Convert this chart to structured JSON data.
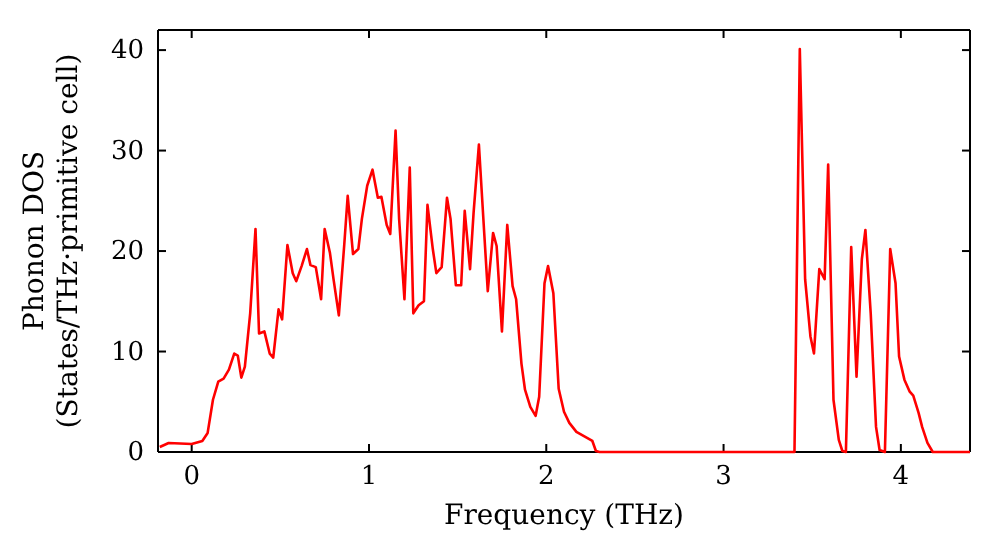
{
  "chart_data": {
    "type": "line",
    "xlabel": "Frequency (THz)",
    "ylabel": "Phonon DOS\n(States/THz·primitive cell)",
    "xlim": [
      -0.19,
      4.39
    ],
    "ylim": [
      0,
      42
    ],
    "xticks": [
      0,
      1,
      2,
      3,
      4
    ],
    "yticks": [
      0,
      10,
      20,
      30,
      40
    ],
    "grid": false,
    "marker": "none",
    "line_style": "solid",
    "series": [
      {
        "color": "#ff0000",
        "x": [
          -0.18,
          -0.13,
          0.0,
          0.06,
          0.09,
          0.12,
          0.15,
          0.18,
          0.21,
          0.24,
          0.26,
          0.28,
          0.3,
          0.33,
          0.36,
          0.38,
          0.41,
          0.44,
          0.46,
          0.49,
          0.51,
          0.54,
          0.57,
          0.59,
          0.62,
          0.65,
          0.67,
          0.7,
          0.73,
          0.75,
          0.78,
          0.8,
          0.83,
          0.86,
          0.88,
          0.91,
          0.94,
          0.96,
          0.99,
          1.02,
          1.05,
          1.07,
          1.1,
          1.12,
          1.15,
          1.17,
          1.2,
          1.23,
          1.25,
          1.28,
          1.31,
          1.33,
          1.36,
          1.38,
          1.41,
          1.44,
          1.46,
          1.49,
          1.52,
          1.54,
          1.57,
          1.59,
          1.62,
          1.65,
          1.67,
          1.7,
          1.72,
          1.75,
          1.78,
          1.81,
          1.83,
          1.86,
          1.88,
          1.91,
          1.94,
          1.96,
          1.99,
          2.01,
          2.04,
          2.07,
          2.1,
          2.13,
          2.17,
          2.23,
          2.26,
          2.28,
          2.3,
          3.4,
          3.43,
          3.46,
          3.49,
          3.51,
          3.54,
          3.57,
          3.59,
          3.62,
          3.65,
          3.67,
          3.69,
          3.72,
          3.75,
          3.78,
          3.8,
          3.83,
          3.86,
          3.88,
          3.91,
          3.94,
          3.97,
          3.99,
          4.02,
          4.05,
          4.07,
          4.1,
          4.12,
          4.15,
          4.18,
          4.39
        ],
        "values": [
          0.5,
          0.9,
          0.8,
          1.1,
          1.9,
          5.2,
          7.0,
          7.3,
          8.2,
          9.8,
          9.6,
          7.4,
          8.5,
          13.8,
          22.2,
          11.8,
          12.0,
          9.8,
          9.4,
          14.2,
          13.2,
          20.6,
          17.8,
          17.0,
          18.5,
          20.2,
          18.6,
          18.4,
          15.2,
          22.2,
          19.8,
          17.2,
          13.6,
          20.5,
          25.5,
          19.7,
          20.2,
          23.2,
          26.5,
          28.1,
          25.3,
          25.4,
          22.6,
          21.7,
          32.0,
          23.2,
          15.2,
          28.3,
          13.8,
          14.6,
          15.0,
          24.6,
          20.2,
          17.8,
          18.4,
          25.3,
          23.2,
          16.6,
          16.6,
          24.0,
          18.2,
          23.8,
          30.6,
          21.8,
          16.0,
          21.8,
          20.5,
          12.0,
          22.6,
          16.5,
          15.2,
          8.8,
          6.2,
          4.5,
          3.6,
          5.5,
          16.8,
          18.5,
          15.8,
          6.3,
          4.0,
          2.9,
          2.0,
          1.4,
          1.1,
          0.1,
          0,
          0,
          40.1,
          17.2,
          11.5,
          9.8,
          18.2,
          17.2,
          28.6,
          5.2,
          1.2,
          0.1,
          0,
          20.4,
          7.5,
          19.2,
          22.1,
          13.8,
          2.5,
          0.2,
          0,
          20.2,
          16.8,
          9.5,
          7.2,
          6.0,
          5.6,
          3.9,
          2.5,
          0.9,
          0,
          0
        ]
      }
    ]
  }
}
